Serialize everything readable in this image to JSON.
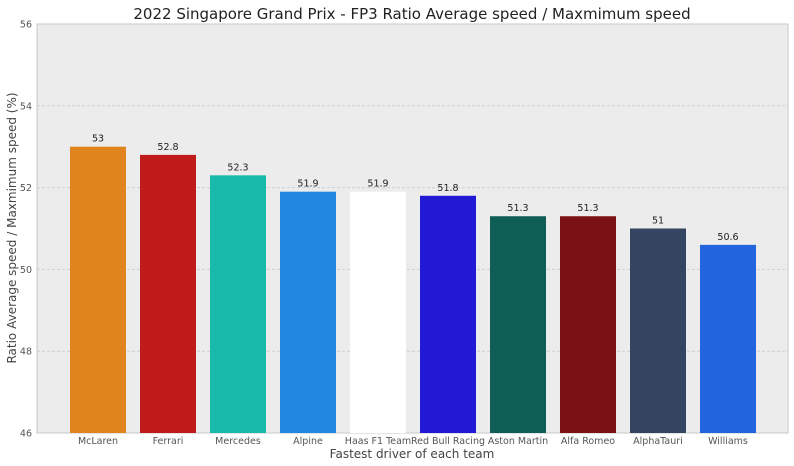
{
  "chart_data": {
    "type": "bar",
    "title": "2022 Singapore Grand Prix - FP3 Ratio Average speed / Maxmimum speed",
    "xlabel": "Fastest driver of each team",
    "ylabel": "Ratio Average speed / Maxmimum speed (%)",
    "ylim": [
      46,
      56
    ],
    "yticks": [
      46,
      48,
      50,
      52,
      54,
      56
    ],
    "grid": "horizontal",
    "categories": [
      "McLaren",
      "Ferrari",
      "Mercedes",
      "Alpine",
      "Haas F1 Team",
      "Red Bull Racing",
      "Aston Martin",
      "Alfa Romeo",
      "AlphaTauri",
      "Williams"
    ],
    "values": [
      53,
      52.8,
      52.3,
      51.9,
      51.9,
      51.8,
      51.3,
      51.3,
      51,
      50.6
    ],
    "data_labels": [
      "53",
      "52.8",
      "52.3",
      "51.9",
      "51.9",
      "51.8",
      "51.3",
      "51.3",
      "51",
      "50.6"
    ],
    "colors": [
      "#e0841e",
      "#c01b1b",
      "#1abaaa",
      "#2089df",
      "#ffffff",
      "#2219d4",
      "#0e5e55",
      "#7c1113",
      "#334560",
      "#2164de"
    ]
  }
}
